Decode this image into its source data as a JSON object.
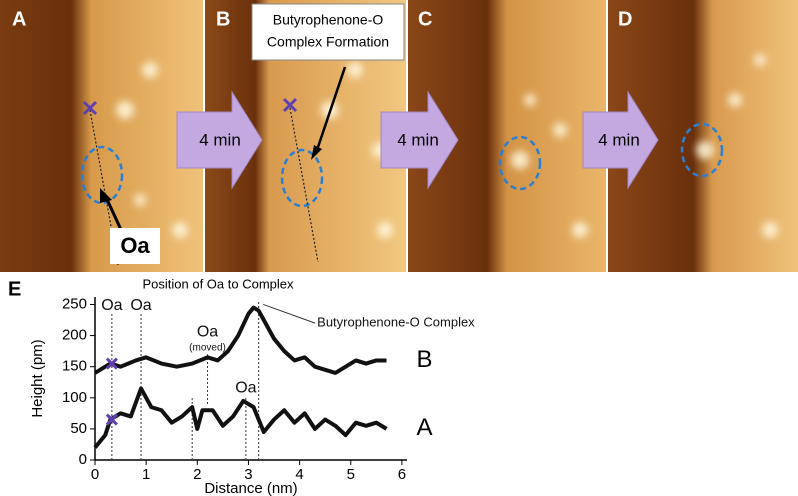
{
  "panels": [
    {
      "label": "A"
    },
    {
      "label": "B"
    },
    {
      "label": "C"
    },
    {
      "label": "D"
    }
  ],
  "arrows": [
    "4 min",
    "4 min",
    "4 min"
  ],
  "callouts": {
    "formation": [
      "Butyrophenone-O",
      "Complex Formation"
    ],
    "oxygen": "Oa"
  },
  "chart_data": {
    "type": "line",
    "panel_label": "E",
    "title": "Position of Oa to Complex",
    "x_label": "Distance (nm)",
    "y_label": "Height (pm)",
    "xlim": [
      0,
      6.1
    ],
    "ylim": [
      0,
      262
    ],
    "xticks": [
      0,
      1,
      2,
      3,
      4,
      5,
      6
    ],
    "yticks": [
      0,
      50,
      100,
      150,
      200,
      250
    ],
    "series": [
      {
        "name": "B",
        "color": "#111111",
        "x": [
          0,
          0.2,
          0.3,
          0.5,
          0.8,
          1.0,
          1.3,
          1.6,
          1.9,
          2.2,
          2.4,
          2.6,
          2.8,
          3.0,
          3.1,
          3.2,
          3.3,
          3.5,
          3.7,
          3.9,
          4.1,
          4.3,
          4.5,
          4.7,
          4.9,
          5.1,
          5.3,
          5.5,
          5.7
        ],
        "values": [
          140,
          150,
          155,
          150,
          160,
          165,
          155,
          150,
          155,
          165,
          160,
          175,
          200,
          235,
          245,
          240,
          225,
          195,
          175,
          160,
          165,
          150,
          145,
          140,
          150,
          160,
          155,
          160,
          160
        ]
      },
      {
        "name": "A",
        "color": "#111111",
        "x": [
          0,
          0.2,
          0.3,
          0.5,
          0.7,
          0.9,
          1.1,
          1.3,
          1.5,
          1.7,
          1.9,
          2.0,
          2.1,
          2.3,
          2.5,
          2.7,
          2.9,
          3.1,
          3.3,
          3.5,
          3.7,
          3.9,
          4.1,
          4.3,
          4.5,
          4.7,
          4.9,
          5.1,
          5.3,
          5.5,
          5.7
        ],
        "values": [
          20,
          40,
          65,
          75,
          70,
          115,
          85,
          80,
          60,
          70,
          85,
          50,
          80,
          80,
          55,
          70,
          95,
          85,
          45,
          65,
          80,
          60,
          75,
          50,
          65,
          55,
          40,
          60,
          55,
          60,
          50
        ]
      }
    ],
    "reference_lines": [
      {
        "x": 0.33,
        "y0": 0,
        "y1": 235
      },
      {
        "x": 0.9,
        "y0": 0,
        "y1": 235
      },
      {
        "x": 1.9,
        "y0": 0,
        "y1": 100
      },
      {
        "x": 2.2,
        "y0": 90,
        "y1": 170
      },
      {
        "x": 2.95,
        "y0": 0,
        "y1": 100
      },
      {
        "x": 3.2,
        "y0": 0,
        "y1": 255
      }
    ],
    "annotations": [
      {
        "text": "Oa",
        "x": 0.33,
        "y": 248
      },
      {
        "text": "Oa",
        "x": 0.9,
        "y": 248
      },
      {
        "text": "Oa",
        "x": 2.2,
        "y": 205
      },
      {
        "text": "(moved)",
        "x": 2.2,
        "y": 180
      },
      {
        "text": "Oa",
        "x": 2.95,
        "y": 115
      },
      {
        "text": "Butyrophenone-O Complex",
        "x": 4.5,
        "y": 220
      }
    ],
    "cross_markers": [
      {
        "x": 0.33,
        "y": 155
      },
      {
        "x": 0.33,
        "y": 65
      }
    ]
  }
}
